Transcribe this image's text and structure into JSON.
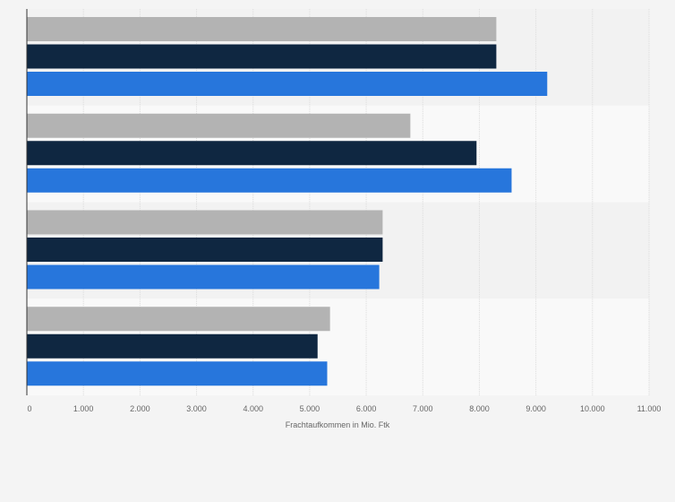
{
  "chart_data": {
    "type": "bar",
    "orientation": "horizontal",
    "xlabel": "Frachtaufkommen in Mio. Ftk",
    "xlim": [
      0,
      11000
    ],
    "xticks": [
      "0",
      "1.000",
      "2.000",
      "3.000",
      "4.000",
      "5.000",
      "6.000",
      "7.000",
      "8.000",
      "9.000",
      "10.000",
      "11.000"
    ],
    "grid": true,
    "series": [
      {
        "color": "#b3b3b3",
        "values": [
          8300,
          6780,
          6290,
          5360
        ]
      },
      {
        "color": "#0f2741",
        "values": [
          8300,
          7950,
          6290,
          5140
        ]
      },
      {
        "color": "#2776dc",
        "values": [
          9200,
          8570,
          6230,
          5310
        ]
      }
    ]
  }
}
